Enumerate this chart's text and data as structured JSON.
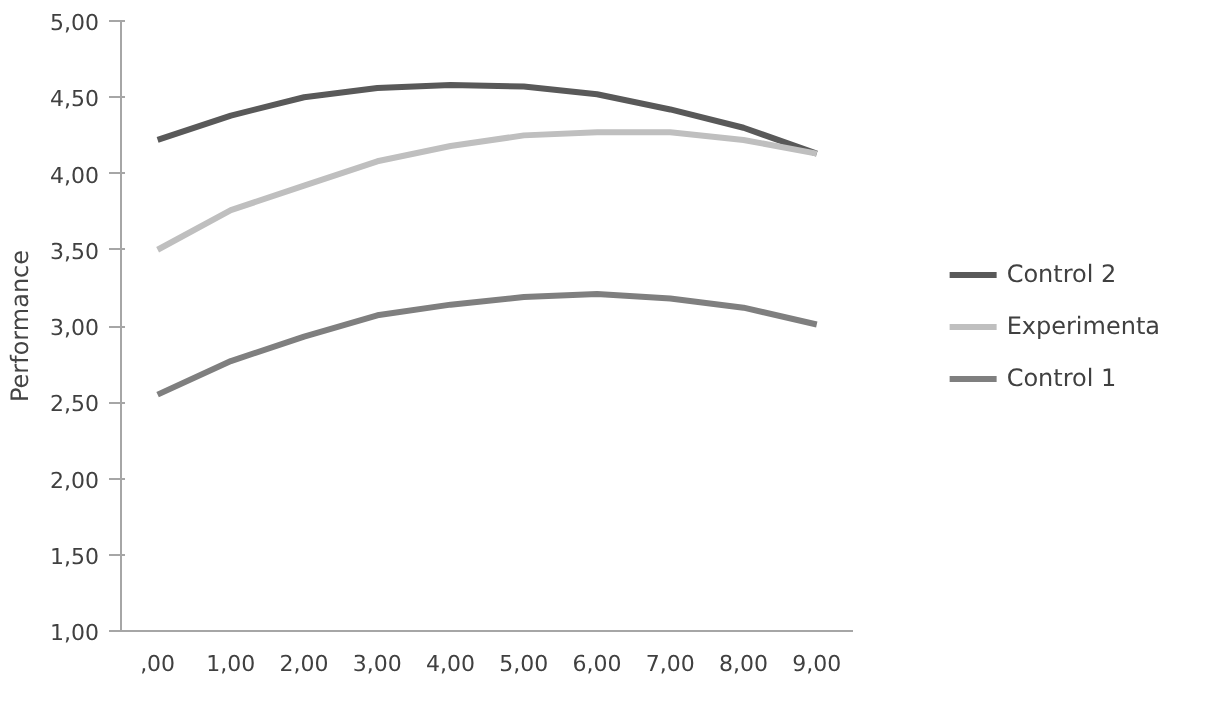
{
  "chart_data": {
    "type": "line",
    "ylabel": "Performance",
    "categories": [
      ",00",
      "1,00",
      "2,00",
      "3,00",
      "4,00",
      "5,00",
      "6,00",
      "7,00",
      "8,00",
      "9,00"
    ],
    "ylim": [
      1,
      5
    ],
    "yticks": [
      {
        "value": 1,
        "label": "1,00"
      },
      {
        "value": 1.5,
        "label": "1,50"
      },
      {
        "value": 2,
        "label": "2,00"
      },
      {
        "value": 2.5,
        "label": "2,50"
      },
      {
        "value": 3,
        "label": "3,00"
      },
      {
        "value": 3.5,
        "label": "3,50"
      },
      {
        "value": 4,
        "label": "4,00"
      },
      {
        "value": 4.5,
        "label": "4,50"
      },
      {
        "value": 5,
        "label": "5,00"
      }
    ],
    "series": [
      {
        "name": "Control 2",
        "color": "#595959",
        "values": [
          4.22,
          4.38,
          4.5,
          4.56,
          4.58,
          4.57,
          4.52,
          4.42,
          4.3,
          4.13
        ]
      },
      {
        "name": "Experimenta",
        "color": "#bfbfbf",
        "values": [
          3.5,
          3.76,
          3.92,
          4.08,
          4.18,
          4.25,
          4.27,
          4.27,
          4.22,
          4.13
        ]
      },
      {
        "name": "Control 1",
        "color": "#7f7f7f",
        "values": [
          2.55,
          2.77,
          2.93,
          3.07,
          3.14,
          3.19,
          3.21,
          3.18,
          3.12,
          3.01
        ]
      }
    ],
    "legend": "right",
    "marker": "none",
    "line_style": "solid"
  }
}
